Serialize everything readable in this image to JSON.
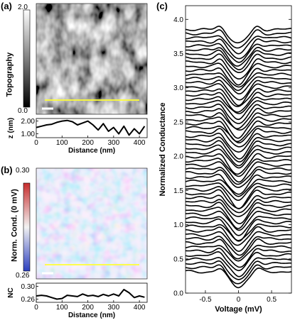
{
  "figure": {
    "panels": {
      "a": {
        "label": "(a)",
        "colorbar_label": "Topography",
        "colorbar_unit": "nm",
        "colorbar_max": "2.0",
        "colorbar_min": "0.0",
        "colors": [
          "#000000",
          "#ffffff"
        ]
      },
      "b": {
        "label": "(b)",
        "colorbar_label": "Norm. Cond. (0 mV)",
        "colorbar_max": "0.30",
        "colorbar_min": "0.26",
        "colors": [
          "#2c3fbf",
          "#f2f2f2",
          "#c72d2d"
        ]
      },
      "c": {
        "label": "(c)"
      }
    }
  },
  "chart_data": [
    {
      "type": "line",
      "title": "",
      "xlabel": "Distance (nm)",
      "ylabel": "z (nm)",
      "x_ticks": [
        "0",
        "100",
        "200",
        "300",
        "400"
      ],
      "y_ticks": [
        "2.00",
        "1.00"
      ],
      "xlim": [
        0,
        430
      ],
      "ylim": [
        0.7,
        2.2
      ],
      "series": [
        {
          "x": [
            0,
            20,
            40,
            60,
            80,
            100,
            120,
            140,
            160,
            180,
            200,
            220,
            240,
            260,
            280,
            300,
            320,
            340,
            360,
            380,
            400,
            420
          ],
          "values": [
            1.5,
            1.6,
            1.7,
            1.75,
            1.9,
            2.0,
            2.05,
            1.95,
            1.7,
            1.85,
            2.0,
            1.7,
            1.3,
            1.8,
            1.2,
            1.5,
            1.0,
            1.6,
            0.9,
            1.4,
            1.0,
            1.6
          ]
        }
      ]
    },
    {
      "type": "line",
      "title": "",
      "xlabel": "Distance (nm)",
      "ylabel": "NC",
      "x_ticks": [
        "0",
        "100",
        "200",
        "300",
        "400"
      ],
      "y_ticks": [
        "0.30",
        "0.26"
      ],
      "xlim": [
        0,
        430
      ],
      "ylim": [
        0.25,
        0.31
      ],
      "series": [
        {
          "x": [
            0,
            20,
            40,
            60,
            80,
            100,
            120,
            140,
            160,
            180,
            200,
            220,
            240,
            260,
            280,
            300,
            320,
            340,
            360,
            380,
            400,
            420
          ],
          "values": [
            0.27,
            0.272,
            0.27,
            0.265,
            0.26,
            0.262,
            0.272,
            0.27,
            0.268,
            0.276,
            0.27,
            0.272,
            0.268,
            0.275,
            0.27,
            0.276,
            0.27,
            0.29,
            0.28,
            0.265,
            0.27,
            0.266
          ]
        }
      ]
    },
    {
      "type": "line",
      "title": "",
      "xlabel": "Voltage (mV)",
      "ylabel": "Normalized Conductance",
      "x_ticks": [
        "-0.5",
        "0",
        "0.5"
      ],
      "y_ticks": [
        "0.0",
        "0.5",
        "1.0",
        "1.5",
        "2.0",
        "2.5",
        "3.0",
        "3.5",
        "4.0"
      ],
      "xlim": [
        -0.8,
        0.8
      ],
      "ylim": [
        0.0,
        4.2
      ],
      "series_count": 60,
      "trace_offset": 0.06,
      "trace_baseline": 0.3,
      "gap_center": 0.0,
      "gap_depth": 0.22,
      "gap_width": 0.12
    }
  ]
}
